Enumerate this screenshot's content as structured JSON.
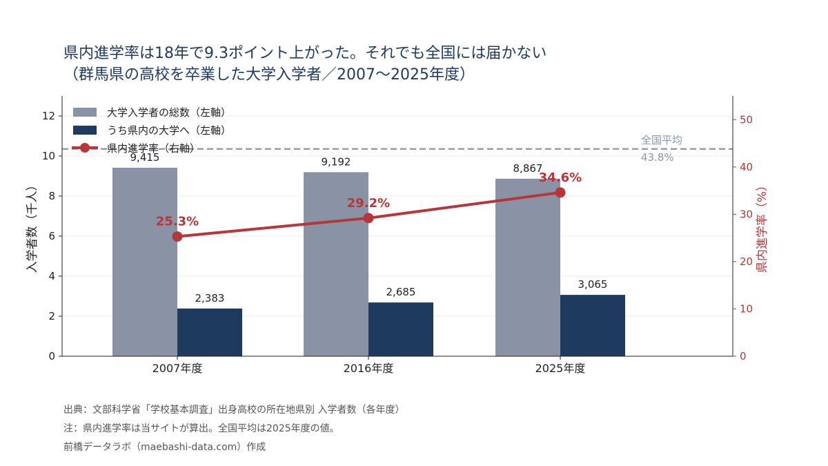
{
  "title_line1": "県内進学率は18年で9.3ポイント上がった。それでも全国には届かない",
  "title_line2": "（群馬県の高校を卒業した大学入学者／2007〜2025年度）",
  "notes": [
    "出典：文部科学省「学校基本調査」出身高校の所在地県別 入学者数（各年度）",
    "注：県内進学率は当サイトが算出。全国平均は2025年度の値。",
    "前橋データラボ（maebashi-data.com）作成"
  ],
  "colors": {
    "total": "#8a93a6",
    "in_pref": "#1f3a5f",
    "rate": "#b5373a",
    "national": "#8a96a8"
  },
  "chart_data": {
    "type": "bar",
    "categories": [
      "2007年度",
      "2016年度",
      "2025年度"
    ],
    "series": [
      {
        "name": "大学入学者の総数（左軸）",
        "values": [
          9.415,
          9.192,
          8.867
        ],
        "labels": [
          "9,415",
          "9,192",
          "8,867"
        ],
        "axis": "left"
      },
      {
        "name": "うち県内の大学へ（左軸）",
        "values": [
          2.383,
          2.685,
          3.065
        ],
        "labels": [
          "2,383",
          "2,685",
          "3,065"
        ],
        "axis": "left"
      },
      {
        "name": "県内進学率（右軸）",
        "type": "line",
        "values": [
          25.3,
          29.2,
          34.6
        ],
        "labels": [
          "25.3%",
          "29.2%",
          "34.6%"
        ],
        "axis": "right"
      }
    ],
    "national_average": {
      "value": 43.8,
      "label_line1": "全国平均",
      "label_line2": "43.8%"
    },
    "ylabel": "入学者数（千人）",
    "y2label": "県内進学率（%）",
    "ylim": [
      0,
      13
    ],
    "y2lim": [
      0,
      55
    ],
    "yticks": [
      0,
      2,
      4,
      6,
      8,
      10,
      12
    ],
    "y2ticks": [
      0,
      10,
      20,
      30,
      40,
      50
    ],
    "grid": true,
    "legend_position": "top-left"
  }
}
